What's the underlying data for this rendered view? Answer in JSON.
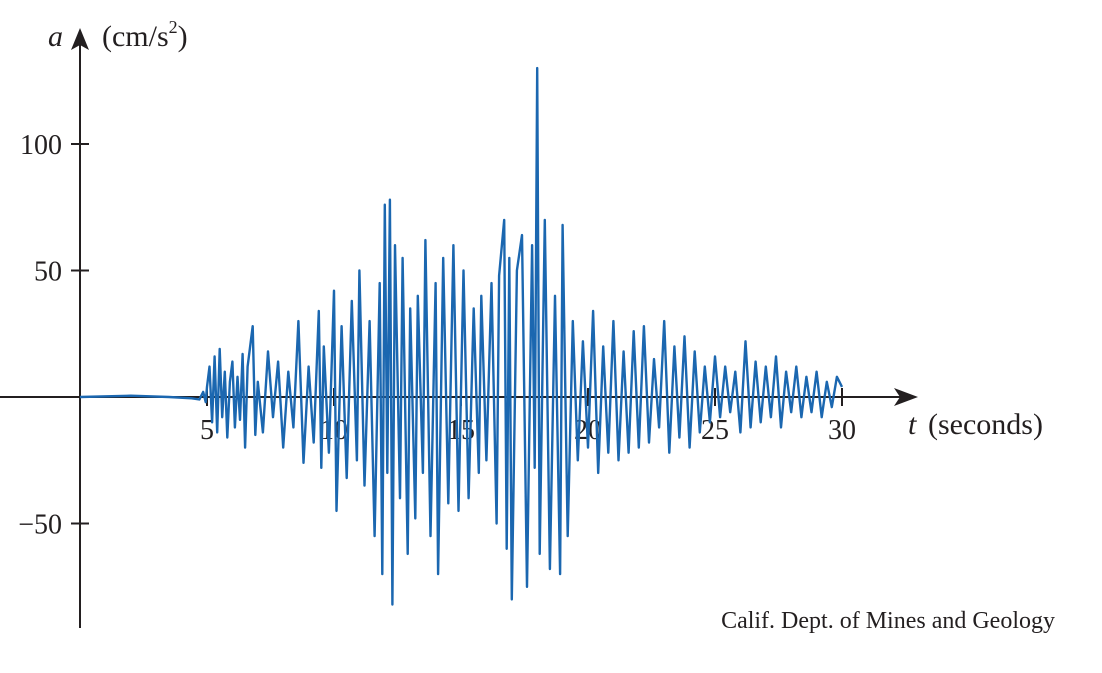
{
  "chart_data": {
    "type": "line",
    "xlabel": "t",
    "xunit": "(seconds)",
    "ylabel": "a",
    "yunit_base": "(cm/s",
    "yunit_sup": "2",
    "yunit_close": ")",
    "xticks": [
      5,
      10,
      15,
      20,
      25,
      30
    ],
    "xtick_labels": [
      "5",
      "10",
      "15",
      "20",
      "25",
      "30"
    ],
    "yticks": [
      100,
      50,
      -50
    ],
    "ytick_labels": [
      "100",
      "50",
      "−50"
    ],
    "xlim": [
      0,
      30
    ],
    "ylim": [
      -85,
      130
    ],
    "line_color": "#1b67b0",
    "axis_color": "#231f20",
    "annotation": "Calif. Dept. of Mines and Geology",
    "series": [
      {
        "points": [
          [
            0.0,
            0.0
          ],
          [
            2.0,
            0.5
          ],
          [
            3.5,
            0.0
          ],
          [
            4.4,
            -0.5
          ],
          [
            4.7,
            -1
          ],
          [
            4.85,
            2
          ],
          [
            4.95,
            -2
          ],
          [
            5.0,
            4
          ],
          [
            5.1,
            12
          ],
          [
            5.2,
            -10
          ],
          [
            5.3,
            16
          ],
          [
            5.4,
            -14
          ],
          [
            5.5,
            19
          ],
          [
            5.6,
            -8
          ],
          [
            5.7,
            10
          ],
          [
            5.8,
            -16
          ],
          [
            5.9,
            6
          ],
          [
            6.0,
            14
          ],
          [
            6.1,
            -12
          ],
          [
            6.2,
            8
          ],
          [
            6.3,
            -9
          ],
          [
            6.4,
            17
          ],
          [
            6.5,
            -20
          ],
          [
            6.6,
            12
          ],
          [
            6.8,
            28
          ],
          [
            6.9,
            -15
          ],
          [
            7.0,
            6
          ],
          [
            7.2,
            -14
          ],
          [
            7.4,
            18
          ],
          [
            7.6,
            -8
          ],
          [
            7.8,
            14
          ],
          [
            8.0,
            -20
          ],
          [
            8.2,
            10
          ],
          [
            8.4,
            -12
          ],
          [
            8.6,
            30
          ],
          [
            8.8,
            -26
          ],
          [
            9.0,
            12
          ],
          [
            9.2,
            -18
          ],
          [
            9.4,
            34
          ],
          [
            9.5,
            -28
          ],
          [
            9.6,
            20
          ],
          [
            9.8,
            -22
          ],
          [
            10.0,
            42
          ],
          [
            10.1,
            -45
          ],
          [
            10.3,
            28
          ],
          [
            10.5,
            -32
          ],
          [
            10.7,
            38
          ],
          [
            10.9,
            -25
          ],
          [
            11.0,
            50
          ],
          [
            11.2,
            -35
          ],
          [
            11.4,
            30
          ],
          [
            11.6,
            -55
          ],
          [
            11.8,
            45
          ],
          [
            11.9,
            -70
          ],
          [
            12.0,
            76
          ],
          [
            12.1,
            -30
          ],
          [
            12.2,
            78
          ],
          [
            12.3,
            -82
          ],
          [
            12.4,
            60
          ],
          [
            12.6,
            -40
          ],
          [
            12.7,
            55
          ],
          [
            12.9,
            -62
          ],
          [
            13.0,
            35
          ],
          [
            13.2,
            -48
          ],
          [
            13.3,
            40
          ],
          [
            13.5,
            -30
          ],
          [
            13.6,
            62
          ],
          [
            13.8,
            -55
          ],
          [
            14.0,
            45
          ],
          [
            14.1,
            -70
          ],
          [
            14.3,
            55
          ],
          [
            14.5,
            -42
          ],
          [
            14.7,
            60
          ],
          [
            14.9,
            -45
          ],
          [
            15.1,
            50
          ],
          [
            15.3,
            -40
          ],
          [
            15.5,
            35
          ],
          [
            15.7,
            -30
          ],
          [
            15.8,
            40
          ],
          [
            16.0,
            -25
          ],
          [
            16.2,
            45
          ],
          [
            16.4,
            -50
          ],
          [
            16.5,
            48
          ],
          [
            16.7,
            70
          ],
          [
            16.8,
            -60
          ],
          [
            16.9,
            55
          ],
          [
            17.0,
            -80
          ],
          [
            17.2,
            50
          ],
          [
            17.4,
            64
          ],
          [
            17.6,
            -75
          ],
          [
            17.8,
            60
          ],
          [
            17.9,
            -28
          ],
          [
            18.0,
            130
          ],
          [
            18.1,
            -62
          ],
          [
            18.3,
            70
          ],
          [
            18.5,
            -68
          ],
          [
            18.7,
            40
          ],
          [
            18.9,
            -70
          ],
          [
            19.0,
            68
          ],
          [
            19.2,
            -55
          ],
          [
            19.4,
            30
          ],
          [
            19.6,
            -25
          ],
          [
            19.8,
            22
          ],
          [
            20.0,
            -20
          ],
          [
            20.2,
            34
          ],
          [
            20.4,
            -30
          ],
          [
            20.6,
            20
          ],
          [
            20.8,
            -22
          ],
          [
            21.0,
            30
          ],
          [
            21.2,
            -25
          ],
          [
            21.4,
            18
          ],
          [
            21.6,
            -22
          ],
          [
            21.8,
            26
          ],
          [
            22.0,
            -20
          ],
          [
            22.2,
            28
          ],
          [
            22.4,
            -18
          ],
          [
            22.6,
            15
          ],
          [
            22.8,
            -12
          ],
          [
            23.0,
            30
          ],
          [
            23.2,
            -22
          ],
          [
            23.4,
            20
          ],
          [
            23.6,
            -16
          ],
          [
            23.8,
            24
          ],
          [
            24.0,
            -20
          ],
          [
            24.2,
            18
          ],
          [
            24.4,
            -14
          ],
          [
            24.6,
            12
          ],
          [
            24.8,
            -10
          ],
          [
            25.0,
            16
          ],
          [
            25.2,
            -8
          ],
          [
            25.4,
            12
          ],
          [
            25.6,
            -6
          ],
          [
            25.8,
            10
          ],
          [
            26.0,
            -14
          ],
          [
            26.2,
            22
          ],
          [
            26.4,
            -12
          ],
          [
            26.6,
            14
          ],
          [
            26.8,
            -10
          ],
          [
            27.0,
            12
          ],
          [
            27.2,
            -8
          ],
          [
            27.4,
            16
          ],
          [
            27.6,
            -12
          ],
          [
            27.8,
            10
          ],
          [
            28.0,
            -6
          ],
          [
            28.2,
            12
          ],
          [
            28.4,
            -8
          ],
          [
            28.6,
            8
          ],
          [
            28.8,
            -6
          ],
          [
            29.0,
            10
          ],
          [
            29.2,
            -8
          ],
          [
            29.4,
            6
          ],
          [
            29.6,
            -4
          ],
          [
            29.8,
            8
          ],
          [
            30.0,
            4
          ]
        ]
      }
    ]
  }
}
